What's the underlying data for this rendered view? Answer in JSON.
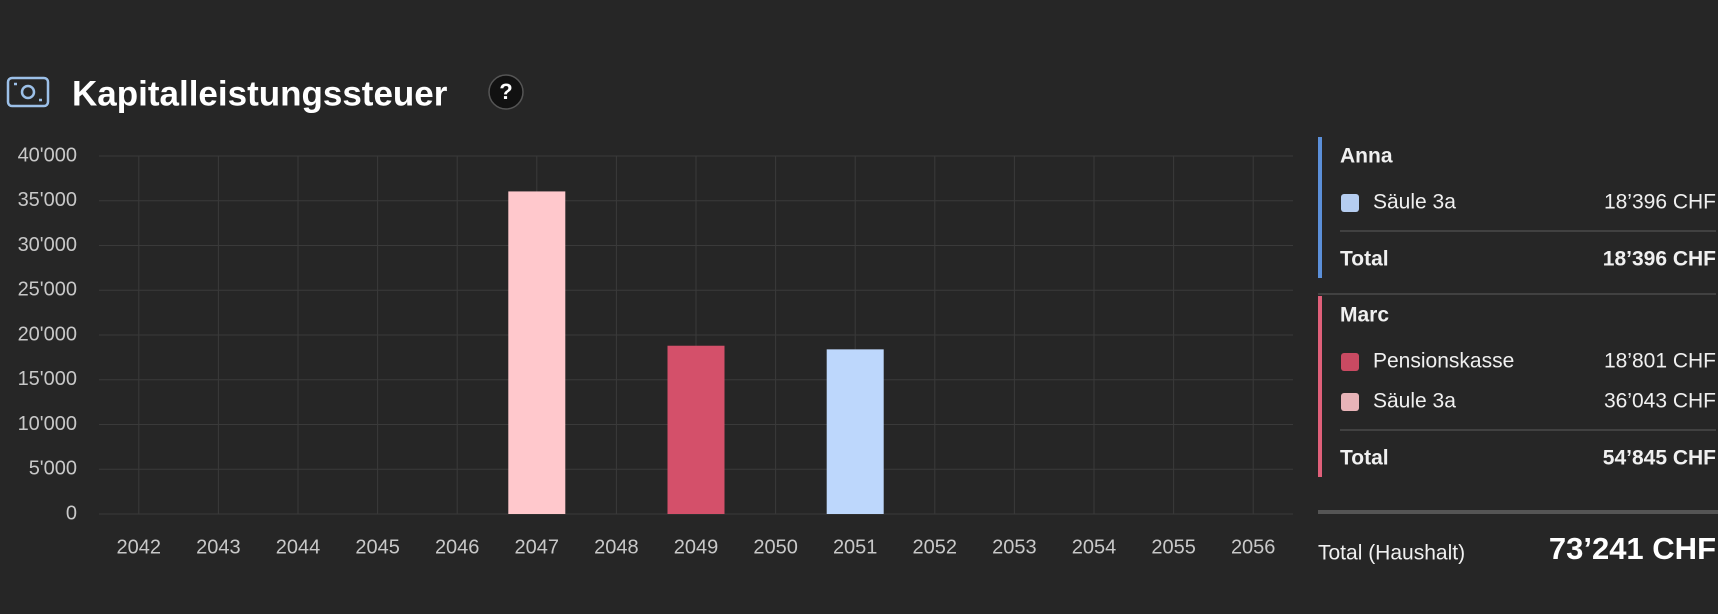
{
  "header": {
    "title": "Kapitalleistungssteuer",
    "help": "?"
  },
  "chart_data": {
    "type": "bar",
    "categories": [
      "2042",
      "2043",
      "2044",
      "2045",
      "2046",
      "2047",
      "2048",
      "2049",
      "2050",
      "2051",
      "2052",
      "2053",
      "2054",
      "2055",
      "2056"
    ],
    "values": [
      null,
      null,
      null,
      null,
      null,
      36043,
      null,
      18801,
      null,
      18396,
      null,
      null,
      null,
      null,
      null
    ],
    "colors": [
      null,
      null,
      null,
      null,
      null,
      "#ffc8cc",
      null,
      "#d4506a",
      null,
      "#bdd7fc",
      null,
      null,
      null,
      null,
      null
    ],
    "ylim": [
      0,
      40000
    ],
    "yticks": [
      0,
      {
        "value": 5000,
        "label": "5'000"
      },
      {
        "value": 10000,
        "label": "10'000"
      },
      {
        "value": 15000,
        "label": "15'000"
      },
      {
        "value": 20000,
        "label": "20'000"
      },
      {
        "value": 25000,
        "label": "25'000"
      },
      {
        "value": 30000,
        "label": "30'000"
      },
      {
        "value": 35000,
        "label": "35'000"
      },
      {
        "value": 40000,
        "label": "40'000"
      }
    ],
    "grid": true
  },
  "breakdown": {
    "groups": [
      {
        "name": "Anna",
        "color": "#5b8fd9",
        "items": [
          {
            "label": "Säule 3a",
            "color": "#b5cdf0",
            "amount": "18’396 CHF"
          }
        ],
        "total_label": "Total",
        "total": "18’396 CHF"
      },
      {
        "name": "Marc",
        "color": "#e0607a",
        "items": [
          {
            "label": "Pensionskasse",
            "color": "#c94a62",
            "amount": "18’801 CHF"
          },
          {
            "label": "Säule 3a",
            "color": "#e8b4b8",
            "amount": "36’043 CHF"
          }
        ],
        "total_label": "Total",
        "total": "54’845 CHF"
      }
    ],
    "household_label": "Total (Haushalt)",
    "household_total": "73’241 CHF"
  }
}
